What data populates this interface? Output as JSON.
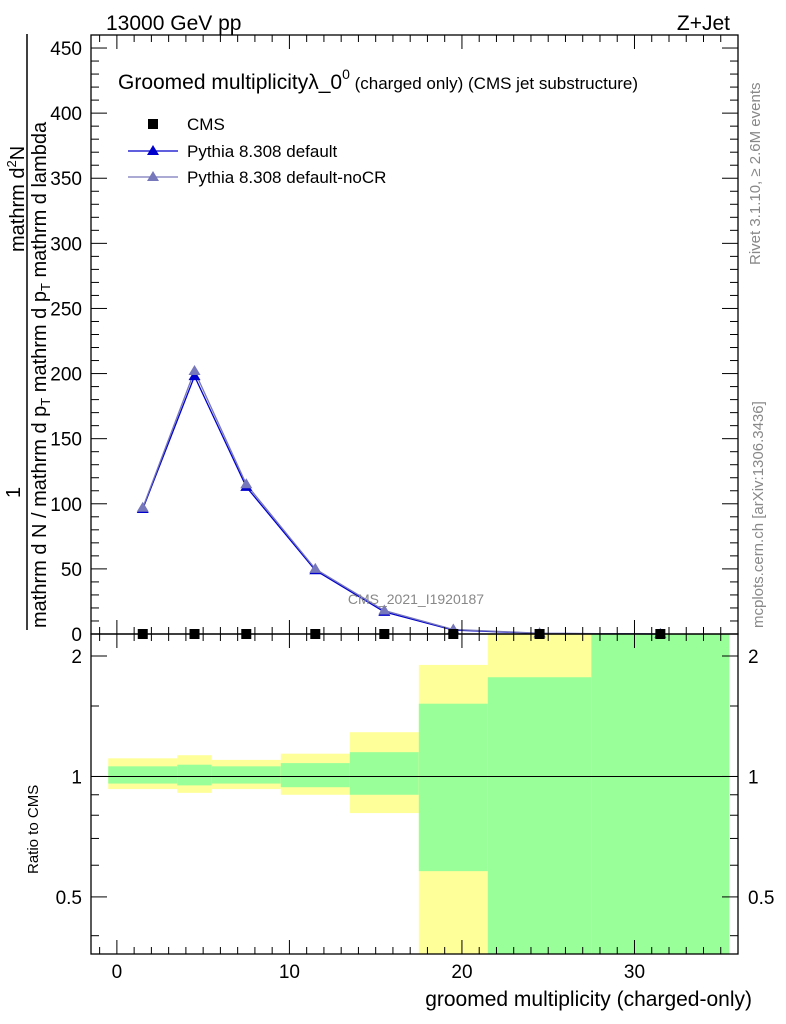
{
  "header": {
    "left": "13000 GeV pp",
    "right": "Z+Jet"
  },
  "side": {
    "rivet": "Rivet 3.1.10, ≥ 2.6M events",
    "mcplots": "mcplots.cern.ch [arXiv:1306.3436]"
  },
  "chart_data": {
    "type": "line",
    "title": "Groomed multiplicityλ_0",
    "title_sup": "0",
    "title_suffix": " (charged only) (CMS jet substructure)",
    "xlabel": "groomed multiplicity (charged-only)",
    "ylabel": {
      "prefix": "1",
      "denominator": "mathrm d N / mathrm d p",
      "denominator_sub": "T",
      "denominator_tail": "mathrm d p",
      "denominator_tail_sub": "T",
      "denominator_end": "mathrm d lambda",
      "numerator": "mathrm d",
      "numerator_sup": "2",
      "numerator_end": "N"
    },
    "ratio_ylabel": "Ratio to CMS",
    "watermark": "CMS_2021_I1920187",
    "xlim": [
      -1.5,
      36
    ],
    "ylim": [
      0,
      460
    ],
    "xticks": [
      "0",
      "10",
      "20",
      "30"
    ],
    "yticks": [
      "0",
      "50",
      "100",
      "150",
      "200",
      "250",
      "300",
      "350",
      "400",
      "450"
    ],
    "ratio_ylim": [
      0.36,
      2.27
    ],
    "ratio_yticks": [
      "0.5",
      "1",
      "2"
    ],
    "legend": {
      "placement": "top-left"
    },
    "x": [
      1.5,
      4.5,
      7.5,
      11.5,
      15.5,
      19.5,
      24.5,
      31.5
    ],
    "bins": [
      [
        -0.5,
        3.5
      ],
      [
        3.5,
        5.5
      ],
      [
        5.5,
        9.5
      ],
      [
        9.5,
        13.5
      ],
      [
        13.5,
        17.5
      ],
      [
        17.5,
        21.5
      ],
      [
        21.5,
        27.5
      ],
      [
        27.5,
        35.5
      ]
    ],
    "series": [
      {
        "name": "CMS",
        "values": [
          0,
          0,
          0,
          0,
          0,
          0,
          0,
          0
        ],
        "color": "#000000",
        "marker": "square"
      },
      {
        "name": "Pythia 8.308 default",
        "values": [
          96,
          198,
          113,
          49,
          17,
          3,
          0.5,
          0
        ],
        "color": "#0000cc",
        "marker": "triangle"
      },
      {
        "name": "Pythia 8.308 default-noCR",
        "values": [
          97,
          202,
          115,
          50,
          18,
          3.5,
          0.6,
          0
        ],
        "color": "#7777bb",
        "marker": "triangle"
      }
    ],
    "ratio_bands": [
      {
        "yellow": [
          0.93,
          1.11
        ],
        "green": [
          0.96,
          1.06
        ]
      },
      {
        "yellow": [
          0.91,
          1.13
        ],
        "green": [
          0.95,
          1.07
        ]
      },
      {
        "yellow": [
          0.93,
          1.1
        ],
        "green": [
          0.96,
          1.06
        ]
      },
      {
        "yellow": [
          0.9,
          1.14
        ],
        "green": [
          0.94,
          1.08
        ]
      },
      {
        "yellow": [
          0.81,
          1.29
        ],
        "green": [
          0.9,
          1.15
        ]
      },
      {
        "yellow": [
          0.36,
          1.9
        ],
        "green": [
          0.58,
          1.52
        ]
      },
      {
        "yellow": [
          0.36,
          2.27
        ],
        "green": [
          0.36,
          1.77
        ]
      },
      {
        "yellow": [
          0.36,
          2.27
        ],
        "green": [
          0.36,
          2.27
        ]
      }
    ]
  }
}
